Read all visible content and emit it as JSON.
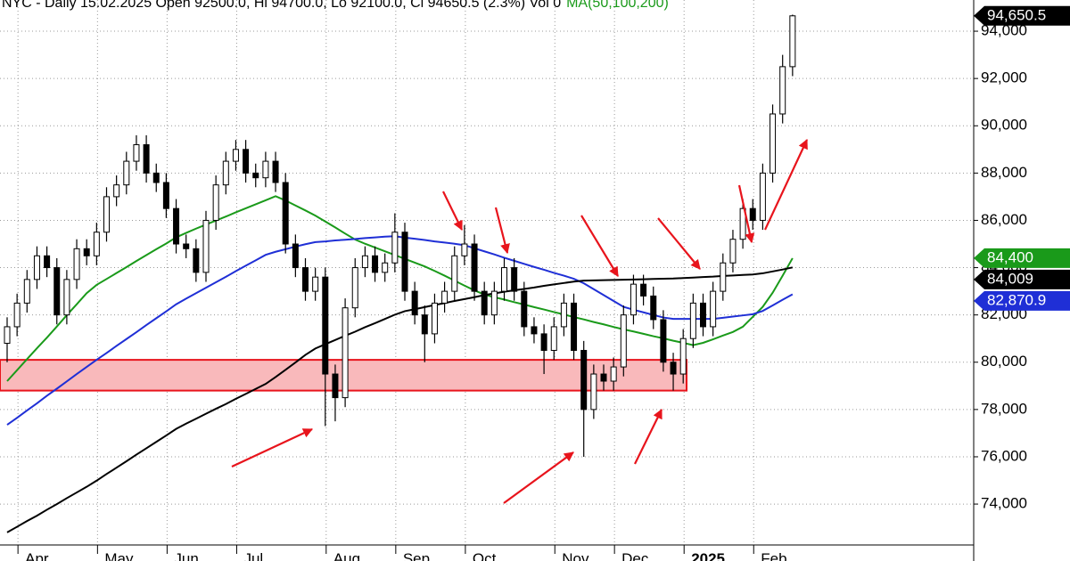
{
  "chart_data": {
    "type": "candlestick",
    "title": "NYC - Daily 15.02.2025 Open 92500.0, Hi 94700.0, Lo 92100.0, Cl 94650.5 (2.3%) Vol 0",
    "subtitle": "MA(50,100,200)",
    "subtitle_color": "#1a9a1a",
    "grid": true,
    "up_color": "#ffffff",
    "down_color": "#000000",
    "ylim": [
      72270,
      95320
    ],
    "yticks": [
      {
        "value": 74000,
        "label": "74,000"
      },
      {
        "value": 76000,
        "label": "76,000"
      },
      {
        "value": 78000,
        "label": "78,000"
      },
      {
        "value": 80000,
        "label": "80,000"
      },
      {
        "value": 82000,
        "label": "82,000"
      },
      {
        "value": 84000,
        "label": "84,000"
      },
      {
        "value": 86000,
        "label": "86,000"
      },
      {
        "value": 88000,
        "label": "88,000"
      },
      {
        "value": 90000,
        "label": "90,000"
      },
      {
        "value": 92000,
        "label": "92,000"
      },
      {
        "value": 94000,
        "label": "94,000"
      }
    ],
    "categories": [
      null,
      "Apr",
      null,
      null,
      null,
      null,
      null,
      null,
      null,
      "May",
      null,
      null,
      null,
      null,
      null,
      null,
      "Jun",
      null,
      null,
      null,
      null,
      null,
      null,
      "Jul",
      null,
      null,
      null,
      null,
      null,
      null,
      null,
      null,
      "Aug",
      null,
      null,
      null,
      null,
      null,
      null,
      "Sep",
      null,
      null,
      null,
      null,
      null,
      null,
      "Oct",
      null,
      null,
      null,
      null,
      null,
      null,
      null,
      null,
      "Nov",
      null,
      null,
      null,
      null,
      null,
      "Dec",
      null,
      null,
      null,
      null,
      null,
      null,
      "2025",
      null,
      null,
      null,
      null,
      null,
      null,
      "Feb",
      null,
      null,
      null,
      null
    ],
    "open": [
      80800,
      81500,
      82500,
      83500,
      84500,
      84000,
      82000,
      83500,
      84800,
      84500,
      85500,
      87000,
      87500,
      88500,
      89200,
      88000,
      87600,
      86500,
      85000,
      84800,
      83800,
      86000,
      87500,
      88500,
      89000,
      88000,
      87800,
      88500,
      87600,
      85000,
      84000,
      83000,
      83600,
      79500,
      78500,
      82300,
      84000,
      84500,
      83800,
      84200,
      85500,
      83000,
      82000,
      81200,
      82500,
      83000,
      84500,
      85000,
      83000,
      82000,
      83000,
      84000,
      83000,
      81500,
      81200,
      80500,
      81500,
      82500,
      80500,
      78000,
      79500,
      79200,
      79800,
      82000,
      83300,
      82800,
      81800,
      80000,
      79500,
      81000,
      82500,
      81500,
      83000,
      84200,
      85200,
      86500,
      86000,
      88000,
      90500,
      92500
    ],
    "high": [
      81900,
      82900,
      83900,
      84900,
      84900,
      84400,
      83900,
      85200,
      85200,
      85900,
      87400,
      87900,
      88900,
      89600,
      89600,
      88400,
      88000,
      86900,
      85400,
      85200,
      86400,
      87900,
      88900,
      89400,
      89400,
      88400,
      88900,
      88900,
      88000,
      85400,
      84400,
      84000,
      84000,
      79900,
      82700,
      84400,
      84900,
      84900,
      84600,
      86300,
      85900,
      83400,
      82400,
      82900,
      83400,
      84900,
      85800,
      85400,
      83400,
      83400,
      84400,
      84400,
      83400,
      81900,
      81600,
      81900,
      82900,
      82900,
      80900,
      79900,
      79900,
      80200,
      82400,
      83700,
      83700,
      83200,
      82200,
      80400,
      81400,
      82900,
      82900,
      83400,
      84600,
      85600,
      86900,
      86900,
      88400,
      90900,
      93000,
      94700
    ],
    "low": [
      80000,
      81100,
      82100,
      83100,
      83600,
      81600,
      81600,
      83100,
      84100,
      84100,
      85100,
      86600,
      87100,
      88100,
      87600,
      87200,
      86100,
      84600,
      84400,
      83400,
      83400,
      85600,
      87100,
      88100,
      87600,
      87400,
      87400,
      87200,
      84600,
      83600,
      82600,
      82600,
      77300,
      77500,
      78100,
      81900,
      83600,
      83400,
      83400,
      83800,
      82600,
      81600,
      80000,
      80800,
      82100,
      82600,
      84100,
      82600,
      81600,
      81600,
      82600,
      82600,
      81100,
      80800,
      79500,
      80100,
      81100,
      80100,
      76000,
      77600,
      78800,
      78800,
      79400,
      81600,
      82400,
      81400,
      79600,
      78800,
      79100,
      80600,
      81100,
      81100,
      82600,
      83800,
      84800,
      85600,
      85600,
      87600,
      90100,
      92100
    ],
    "close": [
      81500,
      82500,
      83500,
      84500,
      84000,
      82000,
      83500,
      84800,
      84500,
      85500,
      87000,
      87500,
      88500,
      89200,
      88000,
      87600,
      86500,
      85000,
      84800,
      83800,
      86000,
      87500,
      88500,
      89000,
      88000,
      87800,
      88500,
      87600,
      85000,
      84000,
      83000,
      83600,
      79500,
      78500,
      82300,
      84000,
      84500,
      83800,
      84200,
      85500,
      83000,
      82000,
      81200,
      82500,
      83000,
      84500,
      85000,
      83000,
      82000,
      83000,
      84000,
      83000,
      81500,
      81200,
      80500,
      81500,
      82500,
      80500,
      78000,
      79500,
      79200,
      79800,
      82000,
      83300,
      82800,
      81800,
      80000,
      79500,
      81000,
      82500,
      81500,
      83000,
      84200,
      85200,
      86500,
      86000,
      88000,
      90500,
      92500,
      94650.5
    ],
    "series": [
      {
        "color": "#1a9a1a",
        "values": [
          79200,
          79664,
          80130,
          80590,
          81040,
          81510,
          81990,
          82450,
          82920,
          83270,
          83520,
          83770,
          84020,
          84280,
          84530,
          84780,
          85020,
          85280,
          85470,
          85650,
          85820,
          85990,
          86160,
          86340,
          86510,
          86680,
          86850,
          87020,
          86840,
          86630,
          86420,
          86200,
          85950,
          85700,
          85440,
          85190,
          85010,
          84850,
          84690,
          84530,
          84370,
          84210,
          84050,
          83860,
          83660,
          83450,
          83240,
          83040,
          82860,
          82750,
          82650,
          82540,
          82440,
          82330,
          82230,
          82120,
          82020,
          81910,
          81810,
          81700,
          81600,
          81490,
          81390,
          81300,
          81200,
          81100,
          81010,
          80910,
          80820,
          80720,
          80820,
          80970,
          81130,
          81280,
          81500,
          81920,
          82340,
          82940,
          83660,
          84400
        ]
      },
      {
        "color": "#1f2fd6",
        "values": [
          77350,
          77650,
          77960,
          78260,
          78580,
          78880,
          79190,
          79500,
          79800,
          80100,
          80390,
          80690,
          80980,
          81270,
          81570,
          81860,
          82150,
          82450,
          82690,
          82920,
          83150,
          83380,
          83610,
          83850,
          84080,
          84310,
          84540,
          84670,
          84780,
          84890,
          84990,
          85080,
          85110,
          85150,
          85180,
          85210,
          85250,
          85280,
          85310,
          85330,
          85270,
          85220,
          85170,
          85110,
          85060,
          85010,
          84950,
          84820,
          84690,
          84560,
          84420,
          84290,
          84160,
          84030,
          83910,
          83780,
          83660,
          83530,
          83340,
          83090,
          82840,
          82590,
          82340,
          82220,
          82110,
          82000,
          81890,
          81830,
          81830,
          81830,
          81830,
          81830,
          81880,
          81930,
          81980,
          82030,
          82170,
          82400,
          82640,
          82870.9
        ]
      },
      {
        "color": "#000000",
        "values": [
          72800,
          73040,
          73280,
          73510,
          73760,
          74000,
          74250,
          74490,
          74730,
          74990,
          75270,
          75540,
          75810,
          76090,
          76360,
          76630,
          76900,
          77180,
          77400,
          77610,
          77820,
          78030,
          78230,
          78450,
          78660,
          78870,
          79080,
          79370,
          79680,
          79990,
          80310,
          80580,
          80760,
          80940,
          81120,
          81290,
          81480,
          81650,
          81830,
          82010,
          82160,
          82240,
          82330,
          82420,
          82500,
          82590,
          82670,
          82750,
          82840,
          82910,
          82980,
          83040,
          83100,
          83160,
          83230,
          83290,
          83350,
          83410,
          83450,
          83460,
          83470,
          83480,
          83490,
          83500,
          83510,
          83520,
          83530,
          83540,
          83560,
          83580,
          83600,
          83620,
          83650,
          83670,
          83690,
          83710,
          83760,
          83840,
          83920,
          84009
        ]
      }
    ],
    "zone": {
      "range": [
        78800,
        80100
      ],
      "color": "#f9b9bb",
      "border": "#e8141c"
    },
    "price_labels": [
      {
        "value": 94650.5,
        "label": "94,650.5",
        "color": "#000000"
      },
      {
        "value": 84400,
        "label": "84,400",
        "color": "#1a9a1a"
      },
      {
        "value": 84009,
        "label": "84,009",
        "color": "#000000"
      },
      {
        "value": 82870.9,
        "label": "82,870.9",
        "color": "#1f2fd6"
      }
    ]
  }
}
